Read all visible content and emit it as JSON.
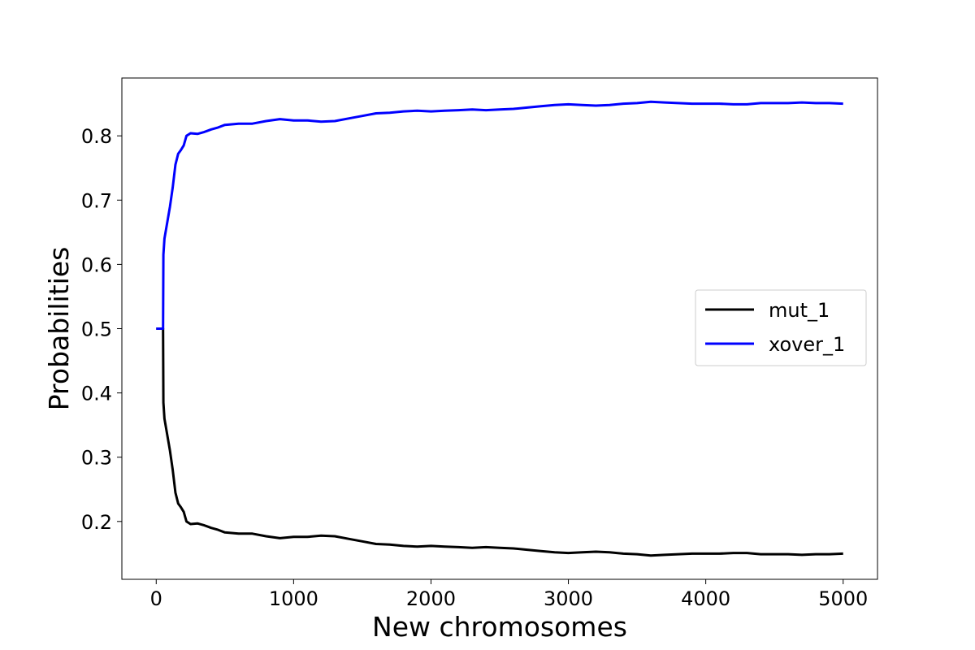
{
  "chart_data": {
    "type": "line",
    "title": "",
    "xlabel": "New chromosomes",
    "ylabel": "Probabilities",
    "xlim": [
      -250,
      5250
    ],
    "ylim": [
      0.11,
      0.89
    ],
    "xticks": [
      0,
      1000,
      2000,
      3000,
      4000,
      5000
    ],
    "yticks": [
      0.2,
      0.3,
      0.4,
      0.5,
      0.6,
      0.7,
      0.8
    ],
    "ytick_labels": [
      "0.2",
      "0.3",
      "0.4",
      "0.5",
      "0.6",
      "0.7",
      "0.8"
    ],
    "grid": false,
    "legend": "center-right",
    "series": [
      {
        "name": "mut_1",
        "color": "#000000",
        "points": [
          [
            0,
            0.5
          ],
          [
            45,
            0.5
          ],
          [
            50,
            0.5
          ],
          [
            52,
            0.385
          ],
          [
            60,
            0.36
          ],
          [
            80,
            0.335
          ],
          [
            100,
            0.31
          ],
          [
            120,
            0.28
          ],
          [
            140,
            0.245
          ],
          [
            160,
            0.228
          ],
          [
            180,
            0.222
          ],
          [
            200,
            0.215
          ],
          [
            220,
            0.2
          ],
          [
            250,
            0.196
          ],
          [
            300,
            0.197
          ],
          [
            350,
            0.194
          ],
          [
            400,
            0.19
          ],
          [
            450,
            0.187
          ],
          [
            500,
            0.183
          ],
          [
            600,
            0.181
          ],
          [
            700,
            0.181
          ],
          [
            800,
            0.177
          ],
          [
            900,
            0.174
          ],
          [
            1000,
            0.176
          ],
          [
            1100,
            0.176
          ],
          [
            1200,
            0.178
          ],
          [
            1300,
            0.177
          ],
          [
            1400,
            0.173
          ],
          [
            1500,
            0.169
          ],
          [
            1600,
            0.165
          ],
          [
            1700,
            0.164
          ],
          [
            1800,
            0.162
          ],
          [
            1900,
            0.161
          ],
          [
            2000,
            0.162
          ],
          [
            2100,
            0.161
          ],
          [
            2200,
            0.16
          ],
          [
            2300,
            0.159
          ],
          [
            2400,
            0.16
          ],
          [
            2500,
            0.159
          ],
          [
            2600,
            0.158
          ],
          [
            2700,
            0.156
          ],
          [
            2800,
            0.154
          ],
          [
            2900,
            0.152
          ],
          [
            3000,
            0.151
          ],
          [
            3100,
            0.152
          ],
          [
            3200,
            0.153
          ],
          [
            3300,
            0.152
          ],
          [
            3400,
            0.15
          ],
          [
            3500,
            0.149
          ],
          [
            3600,
            0.147
          ],
          [
            3700,
            0.148
          ],
          [
            3800,
            0.149
          ],
          [
            3900,
            0.15
          ],
          [
            4000,
            0.15
          ],
          [
            4100,
            0.15
          ],
          [
            4200,
            0.151
          ],
          [
            4300,
            0.151
          ],
          [
            4400,
            0.149
          ],
          [
            4500,
            0.149
          ],
          [
            4600,
            0.149
          ],
          [
            4700,
            0.148
          ],
          [
            4800,
            0.149
          ],
          [
            4900,
            0.149
          ],
          [
            5000,
            0.15
          ]
        ]
      },
      {
        "name": "xover_1",
        "color": "#0000ff",
        "points": [
          [
            0,
            0.5
          ],
          [
            45,
            0.5
          ],
          [
            50,
            0.5
          ],
          [
            52,
            0.615
          ],
          [
            60,
            0.64
          ],
          [
            80,
            0.665
          ],
          [
            100,
            0.69
          ],
          [
            120,
            0.72
          ],
          [
            140,
            0.755
          ],
          [
            160,
            0.772
          ],
          [
            180,
            0.778
          ],
          [
            200,
            0.785
          ],
          [
            220,
            0.8
          ],
          [
            250,
            0.804
          ],
          [
            300,
            0.803
          ],
          [
            350,
            0.806
          ],
          [
            400,
            0.81
          ],
          [
            450,
            0.813
          ],
          [
            500,
            0.817
          ],
          [
            600,
            0.819
          ],
          [
            700,
            0.819
          ],
          [
            800,
            0.823
          ],
          [
            900,
            0.826
          ],
          [
            1000,
            0.824
          ],
          [
            1100,
            0.824
          ],
          [
            1200,
            0.822
          ],
          [
            1300,
            0.823
          ],
          [
            1400,
            0.827
          ],
          [
            1500,
            0.831
          ],
          [
            1600,
            0.835
          ],
          [
            1700,
            0.836
          ],
          [
            1800,
            0.838
          ],
          [
            1900,
            0.839
          ],
          [
            2000,
            0.838
          ],
          [
            2100,
            0.839
          ],
          [
            2200,
            0.84
          ],
          [
            2300,
            0.841
          ],
          [
            2400,
            0.84
          ],
          [
            2500,
            0.841
          ],
          [
            2600,
            0.842
          ],
          [
            2700,
            0.844
          ],
          [
            2800,
            0.846
          ],
          [
            2900,
            0.848
          ],
          [
            3000,
            0.849
          ],
          [
            3100,
            0.848
          ],
          [
            3200,
            0.847
          ],
          [
            3300,
            0.848
          ],
          [
            3400,
            0.85
          ],
          [
            3500,
            0.851
          ],
          [
            3600,
            0.853
          ],
          [
            3700,
            0.852
          ],
          [
            3800,
            0.851
          ],
          [
            3900,
            0.85
          ],
          [
            4000,
            0.85
          ],
          [
            4100,
            0.85
          ],
          [
            4200,
            0.849
          ],
          [
            4300,
            0.849
          ],
          [
            4400,
            0.851
          ],
          [
            4500,
            0.851
          ],
          [
            4600,
            0.851
          ],
          [
            4700,
            0.852
          ],
          [
            4800,
            0.851
          ],
          [
            4900,
            0.851
          ],
          [
            5000,
            0.85
          ]
        ]
      }
    ]
  }
}
